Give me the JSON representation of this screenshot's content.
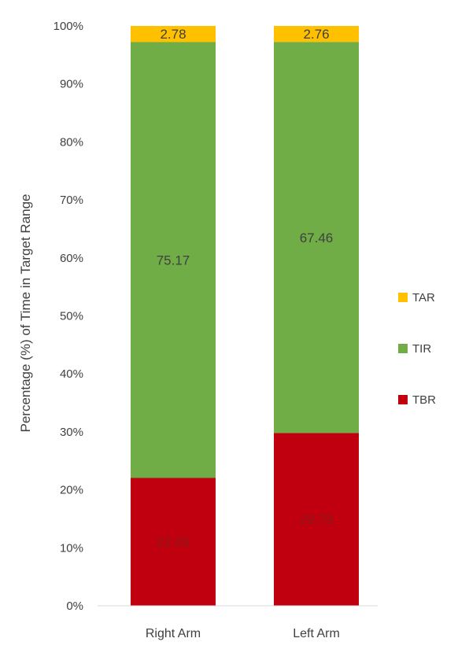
{
  "chart_data": {
    "type": "bar",
    "stacked": true,
    "categories": [
      "Right Arm",
      "Left Arm"
    ],
    "series": [
      {
        "name": "TBR",
        "values": [
          22.05,
          29.79
        ],
        "color": "#C0000F",
        "label_color": "#8B1A1A"
      },
      {
        "name": "TIR",
        "values": [
          75.17,
          67.46
        ],
        "color": "#70AD47",
        "label_color": "#404040"
      },
      {
        "name": "TAR",
        "values": [
          2.78,
          2.76
        ],
        "color": "#FFC000",
        "label_color": "#404040"
      }
    ],
    "data_labels": [
      [
        "22.05",
        "29.79"
      ],
      [
        "75.17",
        "67.46"
      ],
      [
        "2.78",
        "2.76"
      ]
    ],
    "ylabel": "Percentage (%) of Time in Target Range",
    "xlabel": "",
    "title": "",
    "ylim": [
      0,
      100
    ],
    "yticks": [
      0,
      10,
      20,
      30,
      40,
      50,
      60,
      70,
      80,
      90,
      100
    ],
    "ytick_labels": [
      "0%",
      "10%",
      "20%",
      "30%",
      "40%",
      "50%",
      "60%",
      "70%",
      "80%",
      "90%",
      "100%"
    ],
    "grid": false,
    "legend": {
      "position": "right",
      "order": [
        "TAR",
        "TIR",
        "TBR"
      ]
    }
  }
}
